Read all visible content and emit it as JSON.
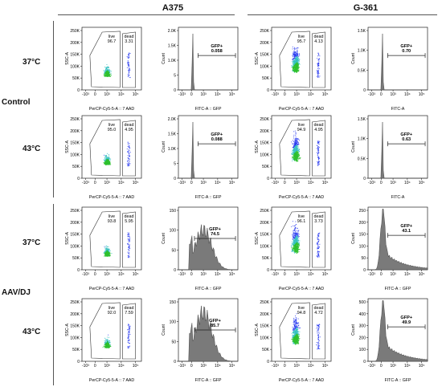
{
  "headers": {
    "a375": "A375",
    "g361": "G-361"
  },
  "groups": {
    "control": "Control",
    "aavdj": "AAV/DJ"
  },
  "temps": [
    "37°C",
    "43°C",
    "37°C",
    "43°C"
  ],
  "axis_text": {
    "ssc": "SSC-A",
    "count": "Count",
    "pcp": "PerCP-Cy5-5-A :: 7 AAD",
    "fitc_gfp": "FITC-A :: GFP",
    "fitc": "FITC-A",
    "live": "live",
    "dead": "dead",
    "gfp": "GFP+"
  },
  "colors": {
    "histogram_fill": "#7a7a7a",
    "gate": "#333333",
    "density_low": "#2b3cf0",
    "density_mid": "#35c0c0",
    "density_high": "#2ec02e"
  },
  "chart_data": [
    {
      "type": "scatter",
      "cell_line": "A375",
      "group": "Control",
      "temp": "37°C",
      "xlabel": "PerCP-Cy5-5-A :: 7 AAD",
      "ylabel": "SSC-A",
      "yticks": [
        "0",
        "50K",
        "100K",
        "150K",
        "200K",
        "250K"
      ],
      "xticks": [
        "-10^3",
        "0",
        "10^3",
        "10^4",
        "10^5"
      ],
      "gates": {
        "live": "96.7",
        "dead": "3.31"
      }
    },
    {
      "type": "histogram",
      "cell_line": "A375",
      "group": "Control",
      "temp": "37°C",
      "xlabel": "FITC-A :: GFP",
      "ylabel": "Count",
      "yticks": [
        "0",
        "5",
        "1.0K",
        "1.5K",
        "2.0K"
      ],
      "xticks": [
        "-10^3",
        "0",
        "10^3",
        "10^4",
        "10^5"
      ],
      "gate": {
        "label": "GFP+",
        "value": "0.058"
      }
    },
    {
      "type": "scatter",
      "cell_line": "G-361",
      "group": "Control",
      "temp": "37°C",
      "xlabel": "PerCP-Cy5-5-A :: 7 AAD",
      "ylabel": "SSC-A",
      "yticks": [
        "0",
        "50K",
        "100K",
        "150K",
        "200K",
        "250K"
      ],
      "xticks": [
        "-10^3",
        "0",
        "10^3",
        "10^4",
        "10^5"
      ],
      "gates": {
        "live": "95.7",
        "dead": "4.13"
      }
    },
    {
      "type": "histogram",
      "cell_line": "G-361",
      "group": "Control",
      "temp": "37°C",
      "xlabel": "FITC-A",
      "ylabel": "Count",
      "yticks": [
        "0",
        "0.5K",
        "1.0K",
        "1.5K"
      ],
      "xticks": [
        "-10^3",
        "0",
        "10^3",
        "10^4",
        "10^5"
      ],
      "gate": {
        "label": "GFP+",
        "value": "0.70"
      }
    },
    {
      "type": "scatter",
      "cell_line": "A375",
      "group": "Control",
      "temp": "43°C",
      "xlabel": "PerCP-Cy5-5-A :: 7 AAD",
      "ylabel": "SSC-A",
      "yticks": [
        "0",
        "50K",
        "100K",
        "150K",
        "200K",
        "250K"
      ],
      "xticks": [
        "-10^3",
        "0",
        "10^3",
        "10^4",
        "10^5"
      ],
      "gates": {
        "live": "95.0",
        "dead": "4.95"
      }
    },
    {
      "type": "histogram",
      "cell_line": "A375",
      "group": "Control",
      "temp": "43°C",
      "xlabel": "FITC-A :: GFP",
      "ylabel": "Count",
      "yticks": [
        "0",
        "5",
        "1.0K",
        "1.5K",
        "2.0K"
      ],
      "xticks": [
        "-10^3",
        "0",
        "10^3",
        "10^4",
        "10^5"
      ],
      "gate": {
        "label": "GFP+",
        "value": "0.088"
      }
    },
    {
      "type": "scatter",
      "cell_line": "G-361",
      "group": "Control",
      "temp": "43°C",
      "xlabel": "PerCP-Cy5-5-A :: 7 AAD",
      "ylabel": "SSC-A",
      "yticks": [
        "0",
        "50K",
        "100K",
        "150K",
        "200K",
        "250K"
      ],
      "xticks": [
        "-10^3",
        "0",
        "10^3",
        "10^4",
        "10^5"
      ],
      "gates": {
        "live": "94.9",
        "dead": "4.95"
      }
    },
    {
      "type": "histogram",
      "cell_line": "G-361",
      "group": "Control",
      "temp": "43°C",
      "xlabel": "FITC-A",
      "ylabel": "Count",
      "yticks": [
        "0",
        "0.5K",
        "1.0K",
        "1.5K"
      ],
      "xticks": [
        "-10^3",
        "0",
        "10^3",
        "10^4",
        "10^5"
      ],
      "gate": {
        "label": "GFP+",
        "value": "0.63"
      }
    },
    {
      "type": "scatter",
      "cell_line": "A375",
      "group": "AAV/DJ",
      "temp": "37°C",
      "xlabel": "PerCP-Cy5-5-A :: 7 AAD",
      "ylabel": "SSC-A",
      "yticks": [
        "0",
        "50K",
        "100K",
        "150K",
        "200K",
        "250K"
      ],
      "xticks": [
        "-10^3",
        "0",
        "10^3",
        "10^4",
        "10^5"
      ],
      "gates": {
        "live": "93.8",
        "dead": "5.95"
      }
    },
    {
      "type": "histogram",
      "cell_line": "A375",
      "group": "AAV/DJ",
      "temp": "37°C",
      "xlabel": "FITC-A :: GFP",
      "ylabel": "Count",
      "yticks": [
        "0",
        "50",
        "100",
        "150"
      ],
      "xticks": [
        "-10^3",
        "0",
        "10^3",
        "10^4",
        "10^5"
      ],
      "gate": {
        "label": "GFP+",
        "value": "74.5"
      }
    },
    {
      "type": "scatter",
      "cell_line": "G-361",
      "group": "AAV/DJ",
      "temp": "37°C",
      "xlabel": "PerCP-Cy5-5-A :: 7 AAD",
      "ylabel": "SSC-A",
      "yticks": [
        "0",
        "50K",
        "100K",
        "150K",
        "200K",
        "250K"
      ],
      "xticks": [
        "-10^3",
        "0",
        "10^3",
        "10^4",
        "10^5"
      ],
      "gates": {
        "live": "96.1",
        "dead": "3.73"
      }
    },
    {
      "type": "histogram",
      "cell_line": "G-361",
      "group": "AAV/DJ",
      "temp": "37°C",
      "xlabel": "FITC-A :: GFP",
      "ylabel": "Count",
      "yticks": [
        "0",
        "50",
        "100",
        "150",
        "200",
        "250"
      ],
      "xticks": [
        "-10^3",
        "0",
        "10^3",
        "10^4",
        "10^5"
      ],
      "gate": {
        "label": "GFP+",
        "value": "43.1"
      }
    },
    {
      "type": "scatter",
      "cell_line": "A375",
      "group": "AAV/DJ",
      "temp": "43°C",
      "xlabel": "PerCP-Cy5-5-A :: 7 AAD",
      "ylabel": "SSC-A",
      "yticks": [
        "0",
        "50K",
        "100K",
        "150K",
        "200K",
        "250K"
      ],
      "xticks": [
        "-10^3",
        "0",
        "10^3",
        "10^4",
        "10^5"
      ],
      "gates": {
        "live": "92.0",
        "dead": "7.59"
      }
    },
    {
      "type": "histogram",
      "cell_line": "A375",
      "group": "AAV/DJ",
      "temp": "43°C",
      "xlabel": "FITC-A :: GFP",
      "ylabel": "Count",
      "yticks": [
        "0",
        "50",
        "100",
        "150"
      ],
      "xticks": [
        "-10^3",
        "0",
        "10^3",
        "10^4",
        "10^5"
      ],
      "gate": {
        "label": "GFP+",
        "value": "85.7"
      }
    },
    {
      "type": "scatter",
      "cell_line": "G-361",
      "group": "AAV/DJ",
      "temp": "43°C",
      "xlabel": "PerCP-Cy5-5-A :: 7 AAD",
      "ylabel": "SSC-A",
      "yticks": [
        "0",
        "50K",
        "100K",
        "150K",
        "200K",
        "250K"
      ],
      "xticks": [
        "-10^3",
        "0",
        "10^3",
        "10^4",
        "10^5"
      ],
      "gates": {
        "live": "94.8",
        "dead": "4.72"
      }
    },
    {
      "type": "histogram",
      "cell_line": "G-361",
      "group": "AAV/DJ",
      "temp": "43°C",
      "xlabel": "FITC-A :: GFP",
      "ylabel": "Count",
      "yticks": [
        "0",
        "100",
        "200",
        "300",
        "400",
        "500"
      ],
      "xticks": [
        "-10^3",
        "0",
        "10^3",
        "10^4",
        "10^5"
      ],
      "gate": {
        "label": "GFP+",
        "value": "49.9"
      }
    }
  ]
}
